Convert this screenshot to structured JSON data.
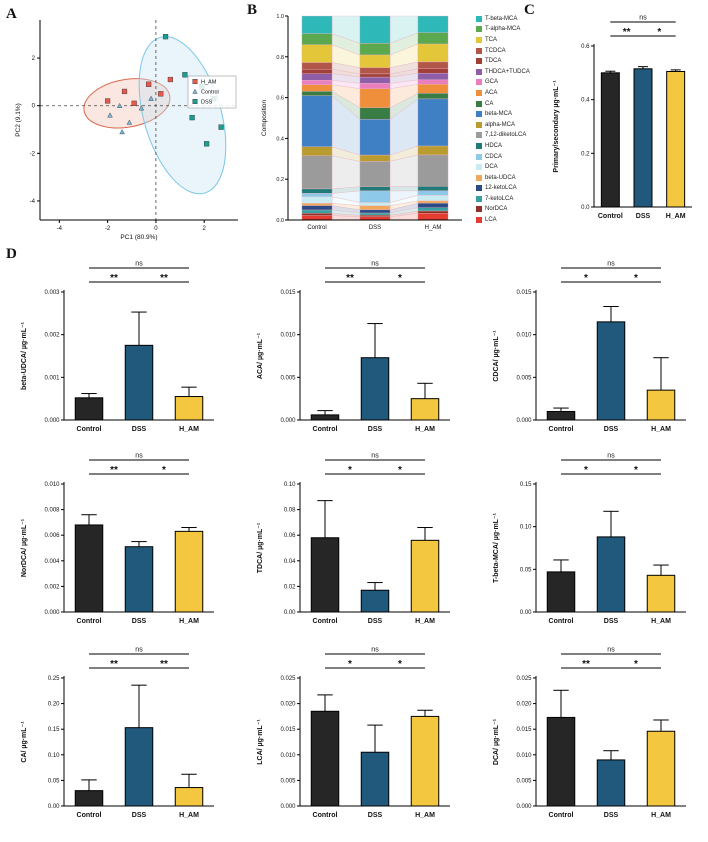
{
  "panels": {
    "a": "A",
    "b": "B",
    "c": "C",
    "d": "D"
  },
  "group_colors": {
    "Control": "#262626",
    "DSS": "#20597c",
    "H_AM": "#f3c73f"
  },
  "chart_data": [
    {
      "id": "pca",
      "type": "scatter",
      "xlabel": "PC1 (80.9%)",
      "ylabel": "PC2 (9.1%)",
      "xlim": [
        -4.8,
        3.4
      ],
      "ylim": [
        -4.8,
        3.6
      ],
      "xticks": [
        -4,
        -2,
        0,
        2
      ],
      "yticks": [
        -4,
        -2,
        0,
        2
      ],
      "legend": [
        "H_AM",
        "Control",
        "DSS"
      ],
      "series": [
        {
          "name": "H_AM",
          "marker": "square",
          "color": "#e4584e",
          "points": [
            [
              -2.0,
              0.2
            ],
            [
              -1.3,
              0.6
            ],
            [
              -0.9,
              0.1
            ],
            [
              -0.3,
              0.9
            ],
            [
              0.2,
              0.5
            ],
            [
              0.6,
              1.1
            ]
          ]
        },
        {
          "name": "Control",
          "marker": "triangle",
          "color": "#74b9dc",
          "points": [
            [
              -1.9,
              -0.4
            ],
            [
              -1.5,
              0.0
            ],
            [
              -1.1,
              -0.7
            ],
            [
              -0.6,
              -0.1
            ],
            [
              -0.2,
              0.3
            ],
            [
              -1.4,
              -1.1
            ]
          ]
        },
        {
          "name": "DSS",
          "marker": "square",
          "color": "#1e9c92",
          "points": [
            [
              0.4,
              2.9
            ],
            [
              1.2,
              1.3
            ],
            [
              1.9,
              0.8
            ],
            [
              2.4,
              0.3
            ],
            [
              1.5,
              -0.5
            ],
            [
              2.1,
              -1.6
            ],
            [
              2.7,
              -0.9
            ]
          ]
        }
      ],
      "ellipses": [
        {
          "cx": -1.2,
          "cy": 0.1,
          "rx": 1.8,
          "ry": 1.0,
          "rot": -10,
          "stroke": "#d96a4f",
          "fill": "#f5c0b2"
        },
        {
          "cx": 1.1,
          "cy": -0.4,
          "rx": 1.6,
          "ry": 3.4,
          "rot": -16,
          "stroke": "#7cc7e8",
          "fill": "#c4e4f2"
        }
      ]
    },
    {
      "id": "composition",
      "type": "bar",
      "subtype": "stacked",
      "ylabel": "Composition",
      "ylim": [
        0,
        1
      ],
      "yticks": [
        0,
        0.2,
        0.4,
        0.6,
        0.8,
        1.0
      ],
      "categories": [
        "Control",
        "DSS",
        "H_AM"
      ],
      "series": [
        {
          "name": "T-beta-MCA",
          "color": "#2fb8b8",
          "values": [
            0.08,
            0.13,
            0.075
          ]
        },
        {
          "name": "T-alpha-MCA",
          "color": "#5ba84f",
          "values": [
            0.05,
            0.055,
            0.05
          ]
        },
        {
          "name": "TCA",
          "color": "#e4c63a",
          "values": [
            0.08,
            0.06,
            0.08
          ]
        },
        {
          "name": "TCDCA",
          "color": "#b3564a",
          "values": [
            0.03,
            0.03,
            0.03
          ]
        },
        {
          "name": "TDCA",
          "color": "#a04038",
          "values": [
            0.02,
            0.015,
            0.02
          ]
        },
        {
          "name": "THDCA+TUDCA",
          "color": "#8e5fa8",
          "values": [
            0.03,
            0.03,
            0.03
          ]
        },
        {
          "name": "GCA",
          "color": "#ea7fc0",
          "values": [
            0.02,
            0.025,
            0.02
          ]
        },
        {
          "name": "ACA",
          "color": "#ef8f3b",
          "values": [
            0.03,
            0.09,
            0.04
          ]
        },
        {
          "name": "CA",
          "color": "#3a7d44",
          "values": [
            0.02,
            0.055,
            0.025
          ]
        },
        {
          "name": "beta-MCA",
          "color": "#3f7fc4",
          "values": [
            0.23,
            0.17,
            0.21
          ]
        },
        {
          "name": "alpha-MCA",
          "color": "#b99b30",
          "values": [
            0.04,
            0.03,
            0.04
          ]
        },
        {
          "name": "7,12-diketoLCA",
          "color": "#9b9b9b",
          "values": [
            0.15,
            0.12,
            0.14
          ]
        },
        {
          "name": "HDCA",
          "color": "#1f7a78",
          "values": [
            0.02,
            0.02,
            0.02
          ]
        },
        {
          "name": "CDCA",
          "color": "#8ec9ea",
          "values": [
            0.015,
            0.055,
            0.02
          ]
        },
        {
          "name": "DCA",
          "color": "#c9ecf2",
          "values": [
            0.03,
            0.015,
            0.025
          ]
        },
        {
          "name": "beta-UDCA",
          "color": "#f0a95c",
          "values": [
            0.01,
            0.02,
            0.01
          ]
        },
        {
          "name": "12-ketoLCA",
          "color": "#2b4a86",
          "values": [
            0.02,
            0.015,
            0.02
          ]
        },
        {
          "name": "7-ketoLCA",
          "color": "#37a0a0",
          "values": [
            0.015,
            0.01,
            0.015
          ]
        },
        {
          "name": "NorDCA",
          "color": "#8f3026",
          "values": [
            0.01,
            0.008,
            0.01
          ]
        },
        {
          "name": "LCA",
          "color": "#e23d30",
          "values": [
            0.02,
            0.015,
            0.03
          ]
        }
      ]
    },
    {
      "id": "primary-secondary",
      "type": "bar",
      "ylabel": "Primary/secondary µg·mL⁻¹",
      "categories": [
        "Control",
        "DSS",
        "H_AM"
      ],
      "values": [
        0.5,
        0.515,
        0.505
      ],
      "errors": [
        0.006,
        0.008,
        0.006
      ],
      "ylim": [
        0,
        0.6
      ],
      "yticks": [
        0,
        0.2,
        0.4,
        0.6
      ],
      "tick_decimals": 1,
      "sig": [
        {
          "from": 0,
          "to": 1,
          "label": "**",
          "level": 0
        },
        {
          "from": 1,
          "to": 2,
          "label": "*",
          "level": 0
        },
        {
          "from": 0,
          "to": 2,
          "label": "ns",
          "level": 1
        }
      ]
    },
    {
      "id": "beta-udca",
      "type": "bar",
      "ylabel": "beta-UDCA/ µg·mL⁻¹",
      "categories": [
        "Control",
        "DSS",
        "H_AM"
      ],
      "values": [
        0.00052,
        0.00175,
        0.00055
      ],
      "errors": [
        0.0001,
        0.00078,
        0.00022
      ],
      "ylim": [
        0,
        0.003
      ],
      "yticks": [
        0,
        0.001,
        0.002,
        0.003
      ],
      "tick_decimals": 3,
      "sig": [
        {
          "from": 0,
          "to": 1,
          "label": "**",
          "level": 0
        },
        {
          "from": 1,
          "to": 2,
          "label": "**",
          "level": 0
        },
        {
          "from": 0,
          "to": 2,
          "label": "ns",
          "level": 1
        }
      ]
    },
    {
      "id": "aca",
      "type": "bar",
      "ylabel": "ACA/ µg·mL⁻¹",
      "categories": [
        "Control",
        "DSS",
        "H_AM"
      ],
      "values": [
        0.0006,
        0.0073,
        0.0025
      ],
      "errors": [
        0.0005,
        0.004,
        0.0018
      ],
      "ylim": [
        0,
        0.015
      ],
      "yticks": [
        0,
        0.005,
        0.01,
        0.015
      ],
      "tick_decimals": 3,
      "sig": [
        {
          "from": 0,
          "to": 1,
          "label": "**",
          "level": 0
        },
        {
          "from": 1,
          "to": 2,
          "label": "*",
          "level": 0
        },
        {
          "from": 0,
          "to": 2,
          "label": "ns",
          "level": 1
        }
      ]
    },
    {
      "id": "cdca",
      "type": "bar",
      "ylabel": "CDCA/ µg·mL⁻¹",
      "categories": [
        "Control",
        "DSS",
        "H_AM"
      ],
      "values": [
        0.001,
        0.0115,
        0.0035
      ],
      "errors": [
        0.0004,
        0.0018,
        0.0038
      ],
      "ylim": [
        0,
        0.015
      ],
      "yticks": [
        0,
        0.005,
        0.01,
        0.015
      ],
      "tick_decimals": 3,
      "sig": [
        {
          "from": 0,
          "to": 1,
          "label": "*",
          "level": 0
        },
        {
          "from": 1,
          "to": 2,
          "label": "*",
          "level": 0
        },
        {
          "from": 0,
          "to": 2,
          "label": "ns",
          "level": 1
        }
      ]
    },
    {
      "id": "nordca",
      "type": "bar",
      "ylabel": "NorDCA/ µg·mL⁻¹",
      "categories": [
        "Control",
        "DSS",
        "H_AM"
      ],
      "values": [
        0.0068,
        0.0051,
        0.0063
      ],
      "errors": [
        0.0008,
        0.0004,
        0.0003
      ],
      "ylim": [
        0,
        0.01
      ],
      "yticks": [
        0,
        0.002,
        0.004,
        0.006,
        0.008,
        0.01
      ],
      "tick_decimals": 3,
      "sig": [
        {
          "from": 0,
          "to": 1,
          "label": "**",
          "level": 0
        },
        {
          "from": 1,
          "to": 2,
          "label": "*",
          "level": 0
        },
        {
          "from": 0,
          "to": 2,
          "label": "ns",
          "level": 1
        }
      ]
    },
    {
      "id": "tdca",
      "type": "bar",
      "ylabel": "TDCA/ µg·mL⁻¹",
      "categories": [
        "Control",
        "DSS",
        "H_AM"
      ],
      "values": [
        0.058,
        0.017,
        0.056
      ],
      "errors": [
        0.029,
        0.006,
        0.01
      ],
      "ylim": [
        0,
        0.1
      ],
      "yticks": [
        0,
        0.02,
        0.04,
        0.06,
        0.08,
        0.1
      ],
      "tick_decimals": 2,
      "sig": [
        {
          "from": 0,
          "to": 1,
          "label": "*",
          "level": 0
        },
        {
          "from": 1,
          "to": 2,
          "label": "*",
          "level": 0
        },
        {
          "from": 0,
          "to": 2,
          "label": "ns",
          "level": 1
        }
      ]
    },
    {
      "id": "t-beta-mca",
      "type": "bar",
      "ylabel": "T-beta-MCA/ µg·mL⁻¹",
      "categories": [
        "Control",
        "DSS",
        "H_AM"
      ],
      "values": [
        0.047,
        0.088,
        0.043
      ],
      "errors": [
        0.014,
        0.03,
        0.012
      ],
      "ylim": [
        0,
        0.15
      ],
      "yticks": [
        0,
        0.05,
        0.1,
        0.15
      ],
      "tick_decimals": 2,
      "sig": [
        {
          "from": 0,
          "to": 1,
          "label": "*",
          "level": 0
        },
        {
          "from": 1,
          "to": 2,
          "label": "*",
          "level": 0
        },
        {
          "from": 0,
          "to": 2,
          "label": "ns",
          "level": 1
        }
      ]
    },
    {
      "id": "ca",
      "type": "bar",
      "ylabel": "CA/ µg·mL⁻¹",
      "categories": [
        "Control",
        "DSS",
        "H_AM"
      ],
      "values": [
        0.03,
        0.153,
        0.036
      ],
      "errors": [
        0.021,
        0.083,
        0.026
      ],
      "ylim": [
        0,
        0.25
      ],
      "yticks": [
        0,
        0.05,
        0.1,
        0.15,
        0.2,
        0.25
      ],
      "tick_decimals": 2,
      "sig": [
        {
          "from": 0,
          "to": 1,
          "label": "**",
          "level": 0
        },
        {
          "from": 1,
          "to": 2,
          "label": "**",
          "level": 0
        },
        {
          "from": 0,
          "to": 2,
          "label": "ns",
          "level": 1
        }
      ]
    },
    {
      "id": "lca",
      "type": "bar",
      "ylabel": "LCA/ µg·mL⁻¹",
      "categories": [
        "Control",
        "DSS",
        "H_AM"
      ],
      "values": [
        0.0185,
        0.0105,
        0.0175
      ],
      "errors": [
        0.0032,
        0.0053,
        0.0012
      ],
      "ylim": [
        0,
        0.025
      ],
      "yticks": [
        0,
        0.005,
        0.01,
        0.015,
        0.02,
        0.025
      ],
      "tick_decimals": 3,
      "sig": [
        {
          "from": 0,
          "to": 1,
          "label": "*",
          "level": 0
        },
        {
          "from": 1,
          "to": 2,
          "label": "*",
          "level": 0
        },
        {
          "from": 0,
          "to": 2,
          "label": "ns",
          "level": 1
        }
      ]
    },
    {
      "id": "dca",
      "type": "bar",
      "ylabel": "DCA/ µg·mL⁻¹",
      "categories": [
        "Control",
        "DSS",
        "H_AM"
      ],
      "values": [
        0.0173,
        0.009,
        0.0146
      ],
      "errors": [
        0.0053,
        0.0018,
        0.0022
      ],
      "ylim": [
        0,
        0.025
      ],
      "yticks": [
        0,
        0.005,
        0.01,
        0.015,
        0.02,
        0.025
      ],
      "tick_decimals": 3,
      "sig": [
        {
          "from": 0,
          "to": 1,
          "label": "**",
          "level": 0
        },
        {
          "from": 1,
          "to": 2,
          "label": "*",
          "level": 0
        },
        {
          "from": 0,
          "to": 2,
          "label": "ns",
          "level": 1
        }
      ]
    }
  ]
}
